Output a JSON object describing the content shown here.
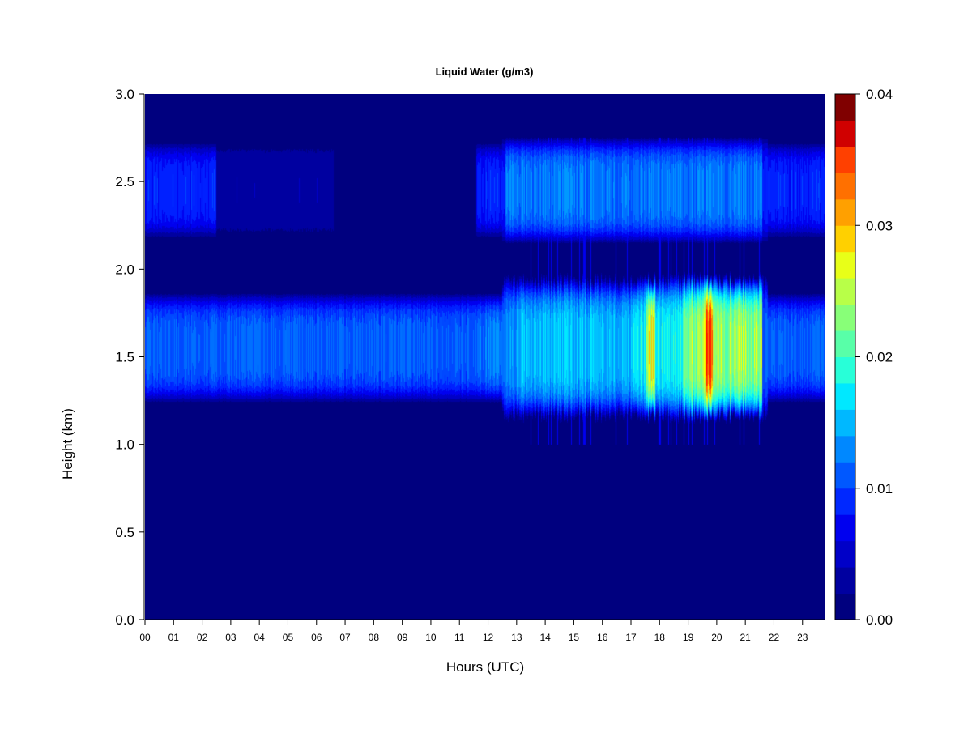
{
  "chart_data": {
    "type": "heatmap",
    "title": "Liquid Water (g/m3)",
    "xlabel": "Hours (UTC)",
    "ylabel": "Height (km)",
    "xlim": [
      0,
      23.8
    ],
    "ylim": [
      0,
      3.0
    ],
    "x_ticks": [
      "00",
      "01",
      "02",
      "03",
      "04",
      "05",
      "06",
      "07",
      "08",
      "09",
      "10",
      "11",
      "12",
      "13",
      "14",
      "15",
      "16",
      "17",
      "18",
      "19",
      "20",
      "21",
      "22",
      "23"
    ],
    "y_ticks": [
      "0.0",
      "0.5",
      "1.0",
      "1.5",
      "2.0",
      "2.5",
      "3.0"
    ],
    "colorbar": {
      "range": [
        0.0,
        0.04
      ],
      "tick_values": [
        0.0,
        0.01,
        0.02,
        0.03,
        0.04
      ],
      "tick_labels": [
        "0.00",
        "0.01",
        "0.02",
        "0.03",
        "0.04"
      ],
      "levels": 20,
      "colors": [
        "#00007F",
        "#0000A0",
        "#0000C8",
        "#0000EF",
        "#0020FF",
        "#0048FF",
        "#0070FF",
        "#0098FF",
        "#00C0FF",
        "#00E8FF",
        "#20FFDF",
        "#48FFB7",
        "#70FF8F",
        "#98FF67",
        "#C0FF3F",
        "#FFFF00",
        "#FFC000",
        "#FF8000",
        "#FF4000",
        "#FF2000",
        "#E00000",
        "#B00000",
        "#800000"
      ]
    },
    "layers": [
      {
        "name_note": "lower",
        "center_km": 1.55,
        "half_width_km": 0.32,
        "hours_active": [
          0,
          23.8
        ]
      },
      {
        "name_note": "upper",
        "center_km": 2.45,
        "half_width_km": 0.28,
        "hours_active": [
          0,
          2.5
        ]
      },
      {
        "name_note": "upper",
        "center_km": 2.45,
        "half_width_km": 0.28,
        "hours_active": [
          11.6,
          23.8
        ]
      }
    ],
    "peak_value_gm3": 0.036,
    "peak_hour": 19.7,
    "peak_height_km": 1.55
  }
}
